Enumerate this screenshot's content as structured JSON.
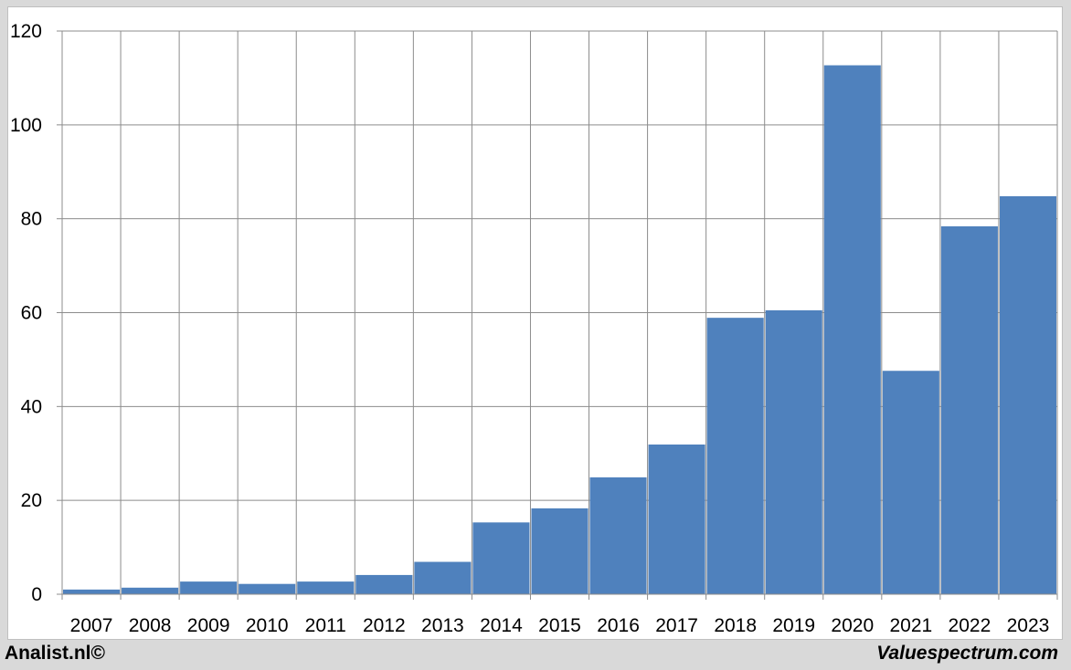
{
  "chart_data": {
    "type": "bar",
    "categories": [
      "2007",
      "2008",
      "2009",
      "2010",
      "2011",
      "2012",
      "2013",
      "2014",
      "2015",
      "2016",
      "2017",
      "2018",
      "2019",
      "2020",
      "2021",
      "2022",
      "2023"
    ],
    "values": [
      1.0,
      1.4,
      2.7,
      2.2,
      2.7,
      4.1,
      6.9,
      15.3,
      18.3,
      24.9,
      31.9,
      58.9,
      60.5,
      112.7,
      47.6,
      78.4,
      84.8
    ],
    "ylim": [
      0,
      120
    ],
    "yticks": [
      0,
      20,
      40,
      60,
      80,
      100,
      120
    ],
    "grid": true,
    "legend": "none",
    "bar_color": "#4f81bd"
  },
  "footer": {
    "left": "Analist.nl©",
    "right": "Valuespectrum.com"
  }
}
